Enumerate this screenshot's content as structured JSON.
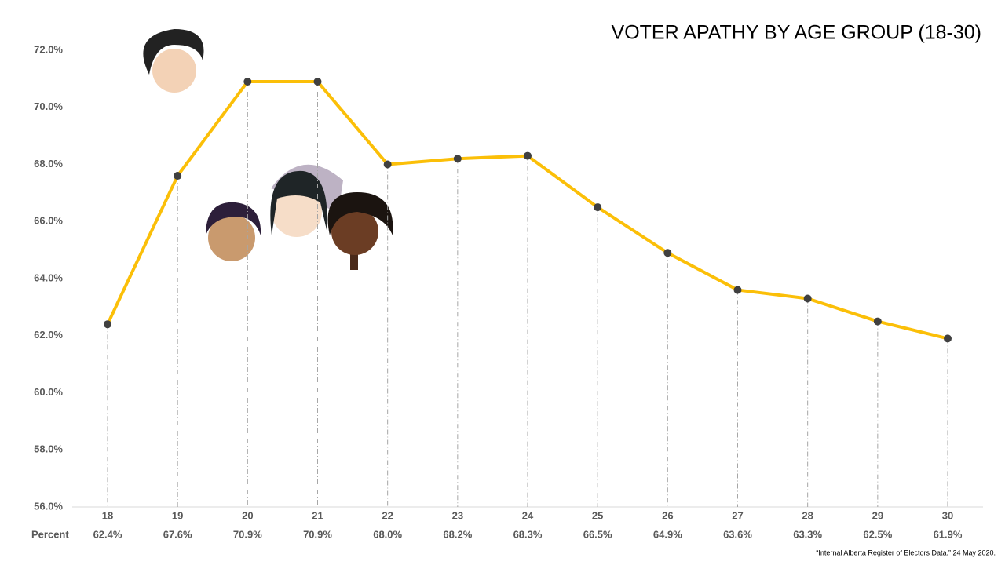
{
  "chart_data": {
    "type": "line",
    "title": "VOTER APATHY BY AGE GROUP (18-30)",
    "categories": [
      "18",
      "19",
      "20",
      "21",
      "22",
      "23",
      "24",
      "25",
      "26",
      "27",
      "28",
      "29",
      "30"
    ],
    "series": [
      {
        "name": "Percent",
        "color": "#fbbf08",
        "values": [
          62.4,
          67.6,
          70.9,
          70.9,
          68.0,
          68.2,
          68.3,
          66.5,
          64.9,
          63.6,
          63.3,
          62.5,
          61.9
        ],
        "value_labels": [
          "62.4%",
          "67.6%",
          "70.9%",
          "70.9%",
          "68.0%",
          "68.2%",
          "68.3%",
          "66.5%",
          "64.9%",
          "63.6%",
          "63.3%",
          "62.5%",
          "61.9%"
        ]
      }
    ],
    "ylim": [
      56,
      72
    ],
    "yticks": [
      {
        "value": 56,
        "label": "56.0%"
      },
      {
        "value": 58,
        "label": "58.0%"
      },
      {
        "value": 60,
        "label": "60.0%"
      },
      {
        "value": 62,
        "label": "62.0%"
      },
      {
        "value": 64,
        "label": "64.0%"
      },
      {
        "value": 66,
        "label": "66.0%"
      },
      {
        "value": 68,
        "label": "68.0%"
      },
      {
        "value": 70,
        "label": "70.0%"
      },
      {
        "value": 72,
        "label": "72.0%"
      }
    ],
    "source": "“Internal Alberta Register of Electors Data.” 24 May 2020."
  }
}
